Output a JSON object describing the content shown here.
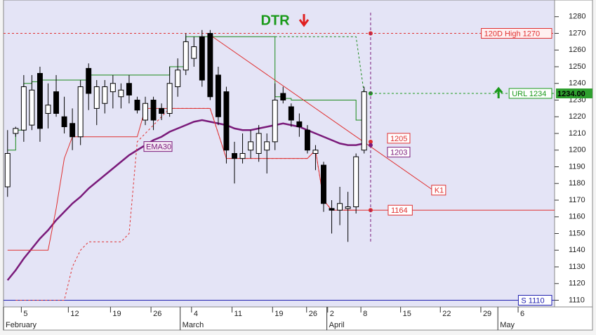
{
  "chart_data": {
    "type": "candlestick",
    "x": [
      0,
      1,
      2,
      3,
      4,
      5,
      6,
      7,
      8,
      9,
      10,
      11,
      12,
      13,
      14,
      15,
      16,
      17,
      18,
      19,
      20,
      21,
      22,
      23,
      24,
      25,
      26,
      27,
      28,
      29,
      30,
      31,
      32,
      33,
      34,
      35,
      36,
      37,
      38,
      39,
      40,
      41,
      42,
      43,
      44
    ],
    "open": [
      1178,
      1210,
      1212,
      1215,
      1246,
      1222,
      1235,
      1220,
      1216,
      1208,
      1249,
      1225,
      1228,
      1235,
      1232,
      1240,
      1230,
      1218,
      1230,
      1225,
      1222,
      1238,
      1248,
      1255,
      1268,
      1270,
      1245,
      1235,
      1198,
      1195,
      1200,
      1198,
      1200,
      1205,
      1234,
      1226,
      1217,
      1212,
      1198,
      1191,
      1165,
      1164,
      1165,
      1166,
      1200
    ],
    "high": [
      1212,
      1214,
      1245,
      1245,
      1250,
      1240,
      1245,
      1232,
      1225,
      1242,
      1252,
      1242,
      1242,
      1245,
      1240,
      1245,
      1232,
      1232,
      1232,
      1228,
      1250,
      1255,
      1270,
      1268,
      1272,
      1272,
      1250,
      1238,
      1205,
      1210,
      1212,
      1215,
      1210,
      1240,
      1238,
      1228,
      1222,
      1215,
      1203,
      1193,
      1170,
      1178,
      1175,
      1198,
      1238
    ],
    "low": [
      1172,
      1208,
      1205,
      1212,
      1205,
      1213,
      1220,
      1210,
      1200,
      1203,
      1224,
      1215,
      1222,
      1225,
      1225,
      1228,
      1222,
      1215,
      1212,
      1218,
      1220,
      1232,
      1245,
      1250,
      1238,
      1230,
      1215,
      1192,
      1180,
      1192,
      1195,
      1193,
      1186,
      1200,
      1228,
      1214,
      1208,
      1198,
      1188,
      1163,
      1150,
      1155,
      1145,
      1162,
      1198
    ],
    "close": [
      1198,
      1213,
      1238,
      1236,
      1213,
      1227,
      1222,
      1214,
      1208,
      1238,
      1234,
      1238,
      1238,
      1240,
      1236,
      1233,
      1224,
      1228,
      1218,
      1222,
      1240,
      1248,
      1265,
      1262,
      1242,
      1232,
      1220,
      1200,
      1195,
      1198,
      1205,
      1210,
      1205,
      1230,
      1230,
      1218,
      1214,
      1200,
      1200,
      1168,
      1164,
      1168,
      1166,
      1196,
      1235
    ],
    "lines": [
      {
        "name": "EMA30",
        "color": "#7a1a7a",
        "style": "solid",
        "step": false,
        "values": [
          1122,
          1128,
          1135,
          1141,
          1147,
          1152,
          1158,
          1163,
          1168,
          1172,
          1177,
          1181,
          1185,
          1189,
          1193,
          1197,
          1200,
          1203,
          1206,
          1208,
          1211,
          1213,
          1215,
          1217,
          1218,
          1217,
          1216,
          1215,
          1213,
          1212,
          1212,
          1213,
          1214,
          1215,
          1216,
          1215,
          1214,
          1212,
          1210,
          1208,
          1206,
          1204,
          1203,
          1203,
          1204
        ]
      },
      {
        "color": "#1a8a1a",
        "style": "solid",
        "step": true,
        "values": [
          1200,
          1212,
          1240,
          1241,
          1242,
          1242,
          1242,
          1242,
          1242,
          1242,
          1245,
          1245,
          1245,
          1245,
          1245,
          1245,
          1245,
          1245,
          1245,
          1245,
          1250,
          1250,
          1268,
          1268,
          1268,
          1268,
          1268,
          1268,
          1268,
          1268,
          1268,
          1268,
          1268,
          1232,
          1231,
          1230,
          1230,
          1230,
          1230,
          1230,
          1230,
          1230,
          1230,
          1218,
          1234
        ]
      },
      {
        "color": "#1a8a1a",
        "style": "dotted",
        "step": false,
        "values": [
          null,
          null,
          null,
          null,
          null,
          null,
          null,
          null,
          null,
          null,
          null,
          null,
          null,
          null,
          null,
          null,
          null,
          null,
          null,
          null,
          null,
          null,
          null,
          null,
          null,
          null,
          null,
          null,
          null,
          null,
          null,
          null,
          null,
          1268,
          1268,
          1268,
          1268,
          1268,
          1268,
          1268,
          1268,
          1268,
          1268,
          1268,
          1234
        ]
      },
      {
        "color": "#e03030",
        "style": "solid",
        "step": false,
        "values": [
          1140,
          1140,
          1140,
          1140,
          1140,
          1140,
          1165,
          1195,
          1208,
          1208,
          1208,
          1208,
          1208,
          1208,
          1208,
          1208,
          1208,
          1225,
          1225,
          1225,
          1225,
          1225,
          1225,
          1225,
          1225,
          1225,
          1210,
          1195,
          1195,
          1195,
          1195,
          1195,
          1195,
          1195,
          1195,
          1195,
          1195,
          1195,
          1200,
          1170,
          1164,
          1164,
          1164,
          1164,
          null
        ]
      },
      {
        "color": "#e03030",
        "style": "dotted",
        "step": false,
        "values": [
          null,
          1110,
          1110,
          1110,
          1110,
          1110,
          1110,
          1110,
          1130,
          1140,
          1145,
          1145,
          1145,
          1145,
          1145,
          1150,
          1205,
          1210,
          1215,
          1220,
          1225,
          1225,
          1225,
          1225,
          1225,
          1225,
          1210,
          1195,
          1195,
          1195,
          1195,
          1195,
          1195,
          1195,
          1195,
          1195,
          1195,
          1195,
          1200,
          1170,
          1164,
          null,
          null,
          null,
          null
        ]
      }
    ],
    "levels": [
      {
        "label": "120D High 1270",
        "value": 1270,
        "color": "#e03030",
        "style": "dotted",
        "placement": "axis"
      },
      {
        "label": "URL 1234",
        "value": 1234,
        "color": "#1a9a1a",
        "style": "dotted",
        "placement": "axis",
        "x_start": 44.8
      },
      {
        "label": "1164",
        "value": 1164,
        "color": "#e03030",
        "style": "solid",
        "placement": "marker",
        "x_start": 41.5
      },
      {
        "label": "S 1110",
        "value": 1110,
        "color": "#2020b0",
        "style": "solid",
        "placement": "axis"
      }
    ],
    "marker_x": 44.8,
    "dot_labels": [
      {
        "label": "1205",
        "value": 1205,
        "color": "#e03030"
      },
      {
        "label": "1203",
        "value": 1203,
        "color": "#7a1a7a"
      }
    ],
    "trendline": {
      "label": "K1",
      "color": "#e03030",
      "x": [
        24.7,
        52.5
      ],
      "values": [
        1270,
        1176
      ]
    },
    "price_box": {
      "value": 1234,
      "label": "1234.00"
    },
    "annotation": "DTR",
    "xlim": [
      -0.5,
      67.5
    ],
    "ylim": [
      1106,
      1290
    ],
    "yticks": [
      1110,
      1120,
      1130,
      1140,
      1150,
      1160,
      1170,
      1180,
      1190,
      1200,
      1210,
      1220,
      1230,
      1240,
      1250,
      1260,
      1270,
      1280
    ],
    "xticks": [
      {
        "value": 1.7,
        "label": "5"
      },
      {
        "value": 7.5,
        "label": "12"
      },
      {
        "value": 12.7,
        "label": "19"
      },
      {
        "value": 17.7,
        "label": "26"
      },
      {
        "value": 22.7,
        "label": "4"
      },
      {
        "value": 27.7,
        "label": "11"
      },
      {
        "value": 32.7,
        "label": "19"
      },
      {
        "value": 36.9,
        "label": "26"
      },
      {
        "value": 39.5,
        "label": "2"
      },
      {
        "value": 43.6,
        "label": "8"
      },
      {
        "value": 48.5,
        "label": "15"
      },
      {
        "value": 53.4,
        "label": "22"
      },
      {
        "value": 58.4,
        "label": "29"
      },
      {
        "value": 63.0,
        "label": "6"
      }
    ],
    "months": [
      {
        "value": -0.5,
        "label": "February"
      },
      {
        "value": 21.3,
        "label": "March"
      },
      {
        "value": 39.4,
        "label": "April"
      },
      {
        "value": 60.5,
        "label": "May"
      }
    ],
    "grid": false
  }
}
